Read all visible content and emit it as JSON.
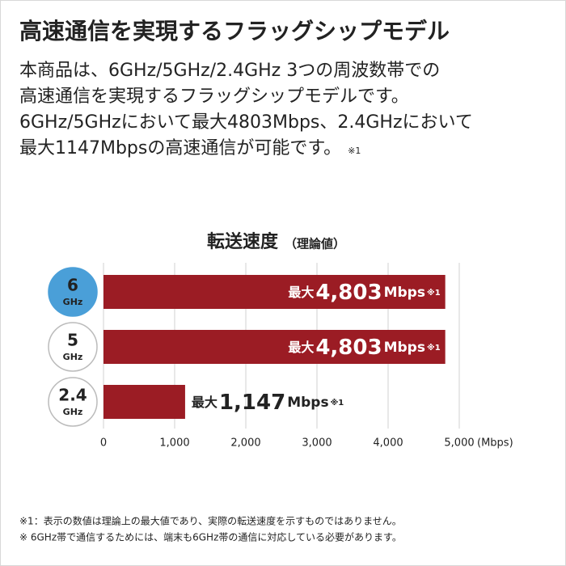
{
  "header": {
    "title": "高速通信を実現するフラッグシップモデル"
  },
  "description": {
    "lines": [
      "本商品は、6GHz/5GHz/2.4GHz 3つの周波数帯での",
      "高速通信を実現するフラッグシップモデルです。",
      "6GHz/5GHzにおいて最大4803Mbps、2.4GHzにおいて",
      "最大1147Mbpsの高速通信が可能です。"
    ],
    "note": "※1"
  },
  "chart_data": {
    "type": "bar",
    "orientation": "horizontal",
    "title": "転送速度",
    "subtitle": "（理論値）",
    "categories": [
      "6",
      "5",
      "2.4"
    ],
    "category_unit": "GHz",
    "highlight_category": 0,
    "values": [
      4803,
      4803,
      1147
    ],
    "value_labels": [
      "4,803",
      "4,803",
      "1,147"
    ],
    "value_prefix": "最大",
    "value_suffix": "Mbps",
    "value_note": "※1",
    "color": "#9b1c24",
    "highlight_color": "#4a9fd8",
    "xlim": [
      0,
      5000
    ],
    "xticks": [
      0,
      {
        "value": 1000,
        "label": "1,000"
      },
      {
        "value": 2000,
        "label": "2,000"
      },
      {
        "value": 3000,
        "label": "3,000"
      },
      {
        "value": 4000,
        "label": "4,000"
      },
      {
        "value": 5000,
        "label": "5,000"
      }
    ],
    "xlabel": "(Mbps)",
    "grid": true
  },
  "footnotes": [
    "※1：表示の数値は理論上の最大値であり、実際の転送速度を示すものではありません。",
    "※ 6GHz帯で通信するためには、端末も6GHz帯の通信に対応している必要があります。"
  ]
}
